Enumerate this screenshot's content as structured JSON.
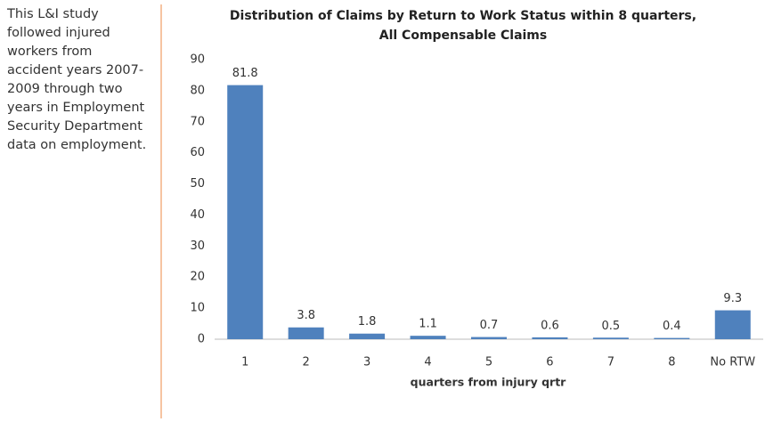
{
  "note": {
    "lines": [
      "This L&I study",
      "followed injured",
      "workers from",
      "accident years 2007-",
      "2009 through two",
      "years in Employment",
      "Security Department",
      "data on employment."
    ]
  },
  "chart_data": {
    "type": "bar",
    "title": [
      "Distribution of Claims by Return to Work Status within 8 quarters,",
      "All Compensable Claims"
    ],
    "x_label": "quarters from injury qrtr",
    "categories": [
      "1",
      "2",
      "3",
      "4",
      "5",
      "6",
      "7",
      "8",
      "No RTW"
    ],
    "values": [
      81.8,
      3.8,
      1.8,
      1.1,
      0.7,
      0.6,
      0.5,
      0.4,
      9.3
    ],
    "color": "#4f81bd",
    "ylim": [
      0,
      90
    ],
    "yticks": [
      0,
      10,
      20,
      30,
      40,
      50,
      60,
      70,
      80,
      90
    ],
    "grid": false
  }
}
